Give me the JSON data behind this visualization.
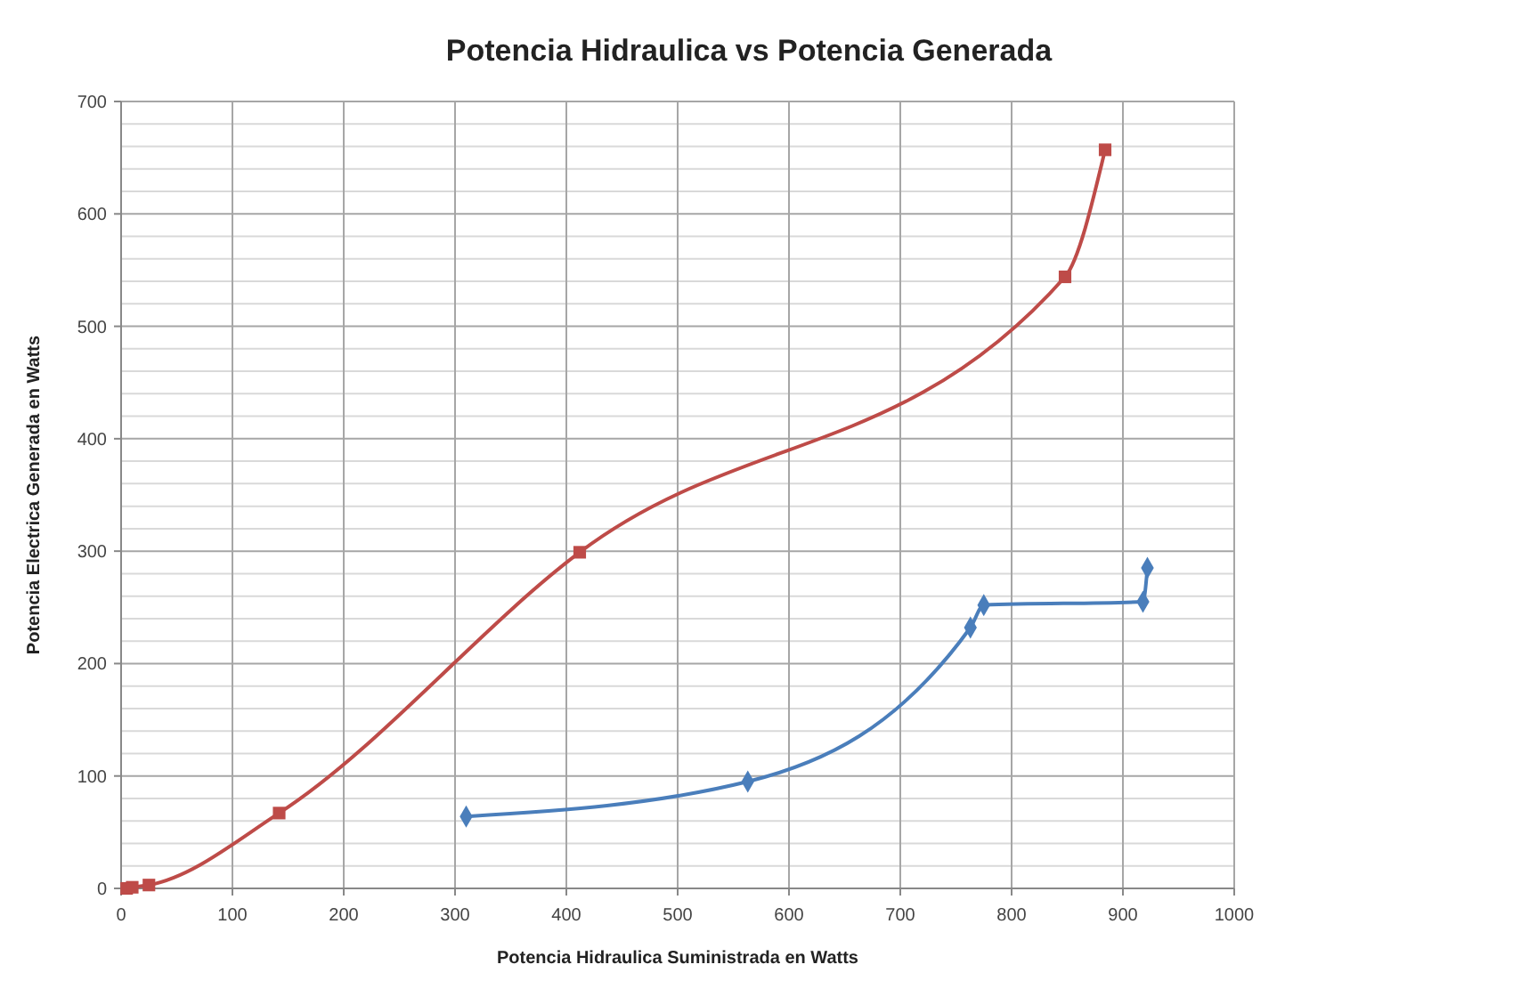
{
  "chart_data": {
    "type": "line",
    "title": "Potencia Hidraulica vs Potencia Generada",
    "xlabel": "Potencia Hidraulica Suministrada en Watts",
    "ylabel": "Potencia Electrica Generada en Watts",
    "xlim": [
      0,
      1000
    ],
    "xticks": [
      0,
      100,
      200,
      300,
      400,
      500,
      600,
      700,
      800,
      900,
      1000
    ],
    "ylim": [
      0,
      700
    ],
    "yticks": [
      0,
      100,
      200,
      300,
      400,
      500,
      600,
      700
    ],
    "grid": true,
    "series": [
      {
        "color": "#4a7ebb",
        "marker": "diamond",
        "x": [
          310,
          563,
          763,
          775,
          918,
          922
        ],
        "values": [
          64,
          95,
          232,
          252,
          255,
          285
        ]
      },
      {
        "color": "#be4b48",
        "marker": "square",
        "x": [
          5,
          10,
          25,
          142,
          412,
          848,
          884
        ],
        "values": [
          0,
          1,
          3,
          67,
          299,
          544,
          657
        ]
      }
    ]
  }
}
